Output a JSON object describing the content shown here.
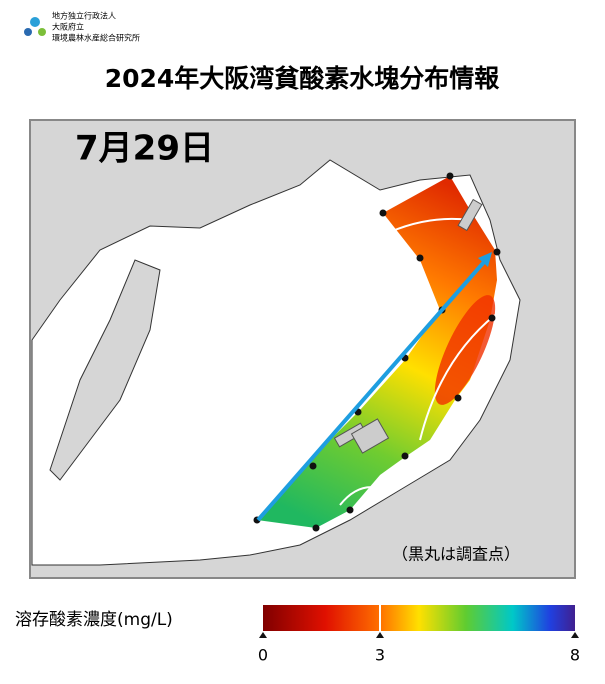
{
  "header": {
    "org": [
      "地方独立行政法人",
      "大阪府立",
      "環境農林水産総合研究所"
    ],
    "title": "2024年大阪湾貧酸素水塊分布情報"
  },
  "map": {
    "date": "7月29日",
    "note": "（黒丸は調査点）"
  },
  "colorbar": {
    "label": "溶存酸素濃度(mg/L)",
    "ticks": [
      0,
      3,
      8
    ]
  }
}
